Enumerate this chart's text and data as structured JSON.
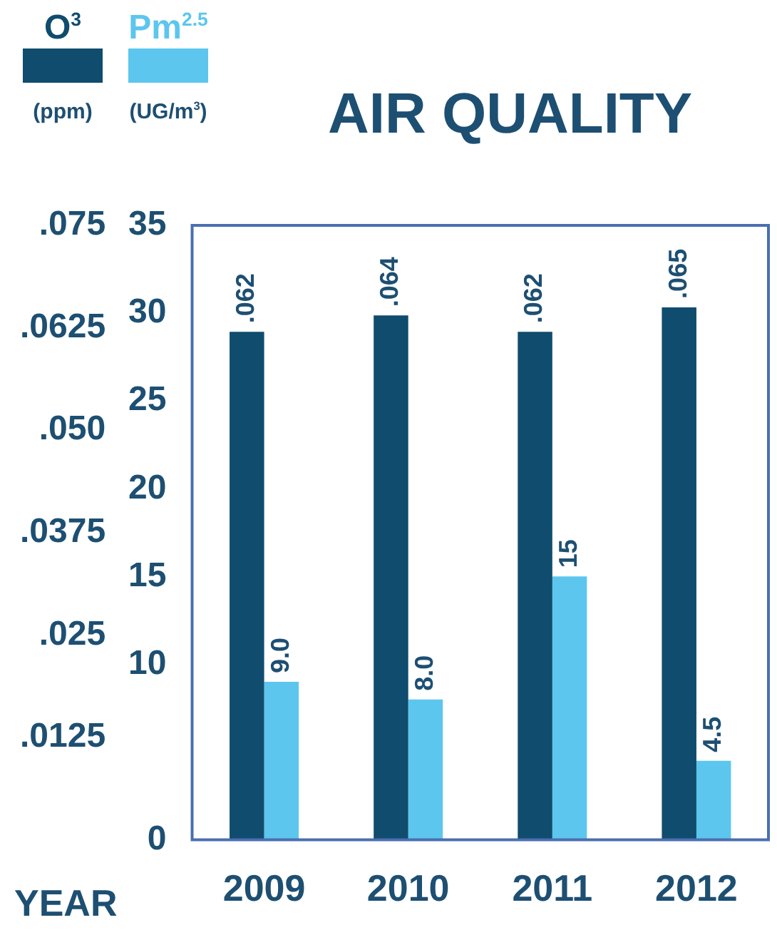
{
  "chart_data": {
    "type": "bar",
    "title": "AIR QUALITY",
    "xlabel": "YEAR",
    "ylabel": "(ppm)",
    "y2label": "(UG/m$^{3}$)",
    "categories": [
      "2009",
      "2010",
      "2011",
      "2012"
    ],
    "series": [
      {
        "name": "O$^{3}$",
        "color": "#0f4c6e",
        "values": [
          0.062,
          0.064,
          0.062,
          0.065
        ],
        "value_labels": [
          ".062",
          ".064",
          ".062",
          ".065"
        ],
        "axis": "y"
      },
      {
        "name": "Pm$^{2.5}$",
        "color": "#5cc6ee",
        "values": [
          9.0,
          8.0,
          15,
          4.5
        ],
        "value_labels": [
          "9.0",
          "8.0",
          "15",
          "4.5"
        ],
        "axis": "y2"
      }
    ],
    "ylim": [
      0,
      0.075
    ],
    "yticks": [
      {
        "value": 0.0125,
        "label": ".0125"
      },
      {
        "value": 0.025,
        "label": ".025"
      },
      {
        "value": 0.0375,
        "label": ".0375"
      },
      {
        "value": 0.05,
        "label": ".050"
      },
      {
        "value": 0.0625,
        "label": ".0625"
      },
      {
        "value": 0.075,
        "label": ".075"
      }
    ],
    "y2lim": [
      0,
      35
    ],
    "y2ticks": [
      0,
      10,
      15,
      20,
      25,
      30,
      35
    ],
    "grid": false,
    "legend": "top left"
  }
}
